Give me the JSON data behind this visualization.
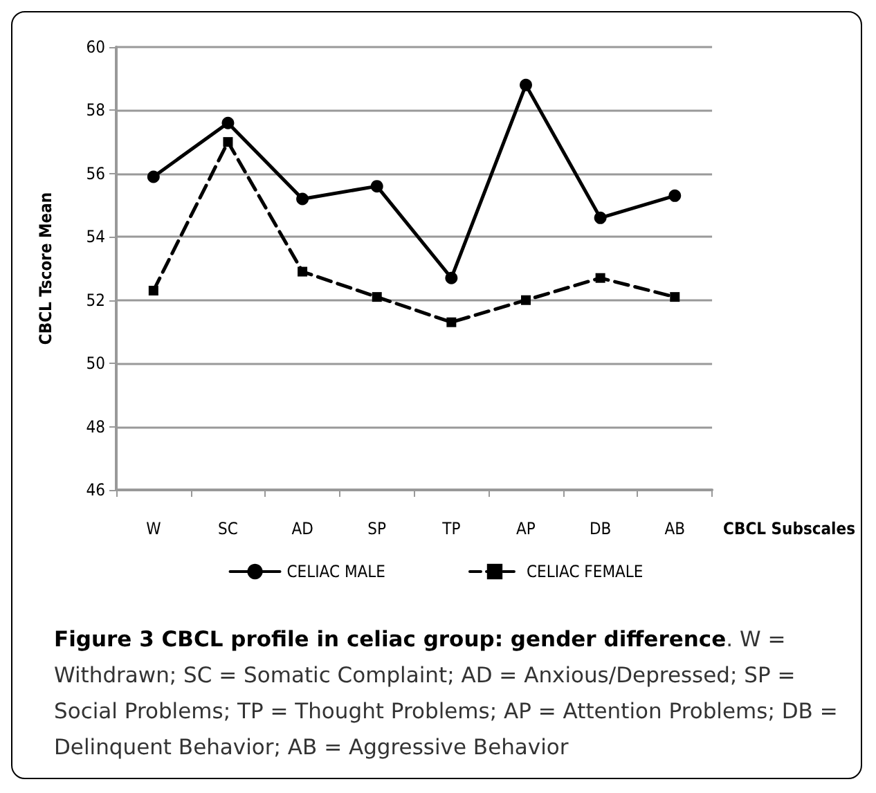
{
  "chart_data": {
    "type": "line",
    "title": "Figure 3 CBCL profile in celiac group: gender difference",
    "annotations": [
      ". W = Withdrawn; SC = Somatic Complaint; AD = Anxious/Depressed; SP = Social Problems; TP = Thought Problems; AP = Attention Problems; DB = Delinquent Behavior; AB = Aggressive Behavior"
    ],
    "xlabel": "CBCL Subscales",
    "ylabel": "CBCL Tscore Mean",
    "categories": [
      "W",
      "SC",
      "AD",
      "SP",
      "TP",
      "AP",
      "DB",
      "AB"
    ],
    "series": [
      {
        "name": "CELIAC MALE",
        "color": "#000000",
        "marker": "circle",
        "line_style": "solid",
        "values": [
          55.9,
          57.6,
          55.2,
          55.6,
          52.7,
          58.8,
          54.6,
          55.3
        ]
      },
      {
        "name": "CELIAC FEMALE",
        "color": "#000000",
        "marker": "square",
        "line_style": "dashed",
        "values": [
          52.3,
          57.0,
          52.9,
          52.1,
          51.3,
          52.0,
          52.7,
          52.1
        ]
      }
    ],
    "ylim": [
      46,
      60
    ],
    "yticks": [
      46,
      48,
      50,
      52,
      54,
      56,
      58,
      60
    ],
    "grid": "y",
    "legend": "bottom"
  }
}
